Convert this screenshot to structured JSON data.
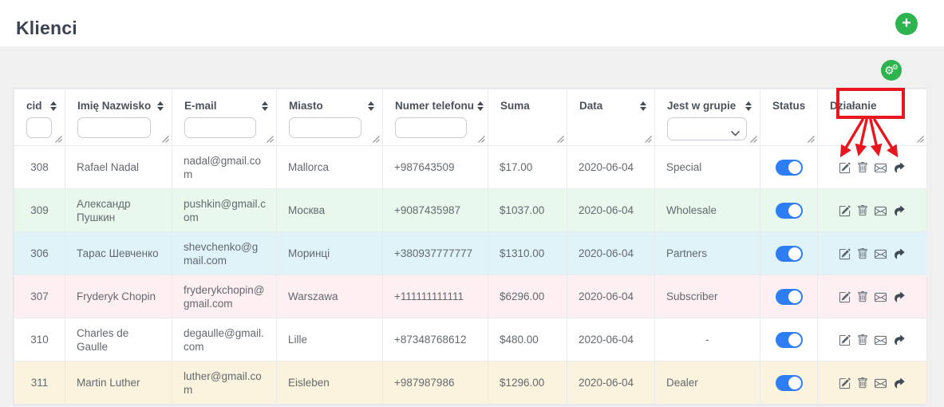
{
  "page": {
    "title": "Klienci",
    "accent_green": "#2eb44f",
    "toggle_blue": "#2d7df4",
    "annotation_red": "#e8161f"
  },
  "toolbar": {
    "add_button": "plus-icon",
    "settings_button": "gears-icon"
  },
  "table": {
    "columns": [
      {
        "key": "cid",
        "label": "cid",
        "sortable": true,
        "filter": "input"
      },
      {
        "key": "name",
        "label": "Imię Nazwisko",
        "sortable": true,
        "filter": "input"
      },
      {
        "key": "email",
        "label": "E-mail",
        "sortable": true,
        "filter": "input"
      },
      {
        "key": "city",
        "label": "Miasto",
        "sortable": true,
        "filter": "input"
      },
      {
        "key": "phone",
        "label": "Numer telefonu",
        "sortable": true,
        "filter": "input"
      },
      {
        "key": "sum",
        "label": "Suma",
        "sortable": false,
        "filter": "none"
      },
      {
        "key": "date",
        "label": "Data",
        "sortable": true,
        "filter": "none"
      },
      {
        "key": "group",
        "label": "Jest w grupie",
        "sortable": true,
        "filter": "select"
      },
      {
        "key": "status",
        "label": "Status",
        "sortable": false,
        "filter": "none"
      },
      {
        "key": "action",
        "label": "Działanie",
        "sortable": false,
        "filter": "none"
      }
    ],
    "group_filter_selected": "",
    "rows": [
      {
        "cid": "308",
        "name": "Rafael Nadal",
        "email": "nadal@gmail.com",
        "city": "Mallorca",
        "phone": "+987643509",
        "sum": "$17.00",
        "date": "2020-06-04",
        "group": "Special",
        "status_on": true,
        "row_color": "#ffffff"
      },
      {
        "cid": "309",
        "name": "Александр Пушкин",
        "email": "pushkin@gmail.com",
        "city": "Москва",
        "phone": "+9087435987",
        "sum": "$1037.00",
        "date": "2020-06-04",
        "group": "Wholesale",
        "status_on": true,
        "row_color": "#e8f8ed"
      },
      {
        "cid": "306",
        "name": "Тарас Шевченко",
        "email": "shevchenko@gmail.com",
        "city": "Моринці",
        "phone": "+380937777777",
        "sum": "$1310.00",
        "date": "2020-06-04",
        "group": "Partners",
        "status_on": true,
        "row_color": "#e0f3f9"
      },
      {
        "cid": "307",
        "name": "Fryderyk Chopin",
        "email": "fryderykchopin@gmail.com",
        "city": "Warszawa",
        "phone": "+111111111111",
        "sum": "$6296.00",
        "date": "2020-06-04",
        "group": "Subscriber",
        "status_on": true,
        "row_color": "#fdeff2"
      },
      {
        "cid": "310",
        "name": "Charles de Gaulle",
        "email": "degaulle@gmail.com",
        "city": "Lille",
        "phone": "+87348768612",
        "sum": "$480.00",
        "date": "2020-06-04",
        "group": "-",
        "status_on": true,
        "row_color": "#ffffff"
      },
      {
        "cid": "311",
        "name": "Martin Luther",
        "email": "luther@gmail.com",
        "city": "Eisleben",
        "phone": "+987987986",
        "sum": "$1296.00",
        "date": "2020-06-04",
        "group": "Dealer",
        "status_on": true,
        "row_color": "#fbf3de"
      }
    ],
    "row_actions": [
      "edit-icon",
      "trash-icon",
      "envelope-icon",
      "share-icon"
    ]
  },
  "annotation": {
    "highlighted_column": "Działanie",
    "color": "#e8161f"
  }
}
